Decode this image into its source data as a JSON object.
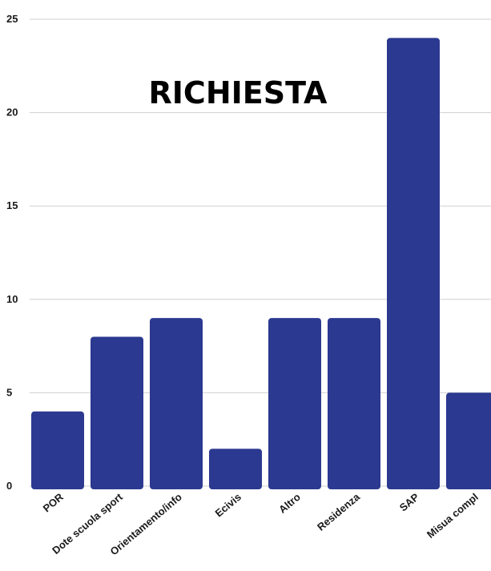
{
  "chart_data": {
    "type": "bar",
    "title": "RICHIESTA",
    "categories": [
      "POR",
      "Dote scuola sport",
      "Orientamento/info",
      "Ecivis",
      "Altro",
      "Residenza",
      "SAP",
      "Misua compl"
    ],
    "values": [
      4,
      8,
      9,
      2,
      9,
      9,
      24,
      5
    ],
    "ylim": [
      0,
      25
    ],
    "yticks": [
      0,
      5,
      10,
      15,
      20,
      25
    ],
    "grid": true,
    "bar_color": "#2b3990"
  }
}
